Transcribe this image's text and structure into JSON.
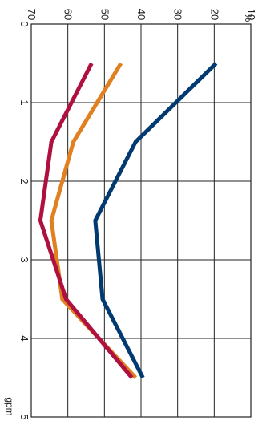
{
  "chart_data": {
    "type": "line",
    "orientation": "rotated-90-clockwise",
    "xlabel": "gpm",
    "ylabel": "%",
    "xlim": [
      0,
      5
    ],
    "ylim": [
      10,
      70
    ],
    "x_ticks": [
      "0",
      "1",
      "2",
      "3",
      "4",
      "5"
    ],
    "y_ticks": [
      "10",
      "20",
      "30",
      "40",
      "50",
      "60",
      "70"
    ],
    "grid": true,
    "series": [
      {
        "color": "#003a70",
        "x": [
          0.5,
          1.5,
          2.5,
          3.5,
          4.5
        ],
        "y": [
          19.5,
          41.5,
          52.5,
          50.5,
          39.5
        ]
      },
      {
        "color": "#e08020",
        "x": [
          0.5,
          1.5,
          2.5,
          3.5,
          4.5
        ],
        "y": [
          45.5,
          58.5,
          64.5,
          61.5,
          41.5
        ]
      },
      {
        "color": "#b0103f",
        "x": [
          0.5,
          1.5,
          2.5,
          3.5,
          4.5
        ],
        "y": [
          53.5,
          64.5,
          67.5,
          60.5,
          42.5
        ]
      }
    ]
  }
}
